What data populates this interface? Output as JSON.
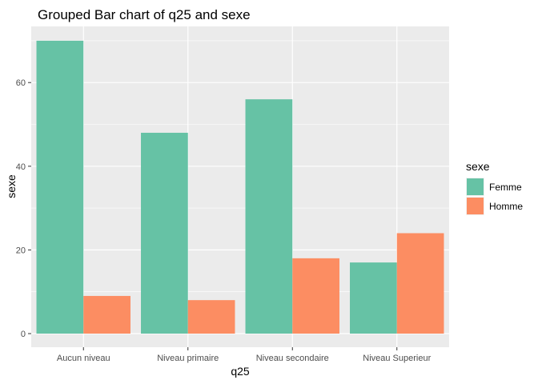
{
  "chart_data": {
    "type": "bar",
    "title": "Grouped Bar chart of q25 and sexe",
    "xlabel": "q25",
    "ylabel": "sexe",
    "categories": [
      "Aucun niveau",
      "Niveau primaire",
      "Niveau secondaire",
      "Niveau Superieur"
    ],
    "series": [
      {
        "name": "Femme",
        "values": [
          70,
          48,
          56,
          17
        ],
        "color": "#66C2A5"
      },
      {
        "name": "Homme",
        "values": [
          9,
          8,
          18,
          24
        ],
        "color": "#FC8D62"
      }
    ],
    "ylim": [
      0,
      73.5
    ],
    "yticks": [
      0,
      20,
      40,
      60
    ],
    "legend": {
      "title": "sexe",
      "position": "right"
    },
    "grid": true,
    "panel_background": "#EBEBEB"
  }
}
